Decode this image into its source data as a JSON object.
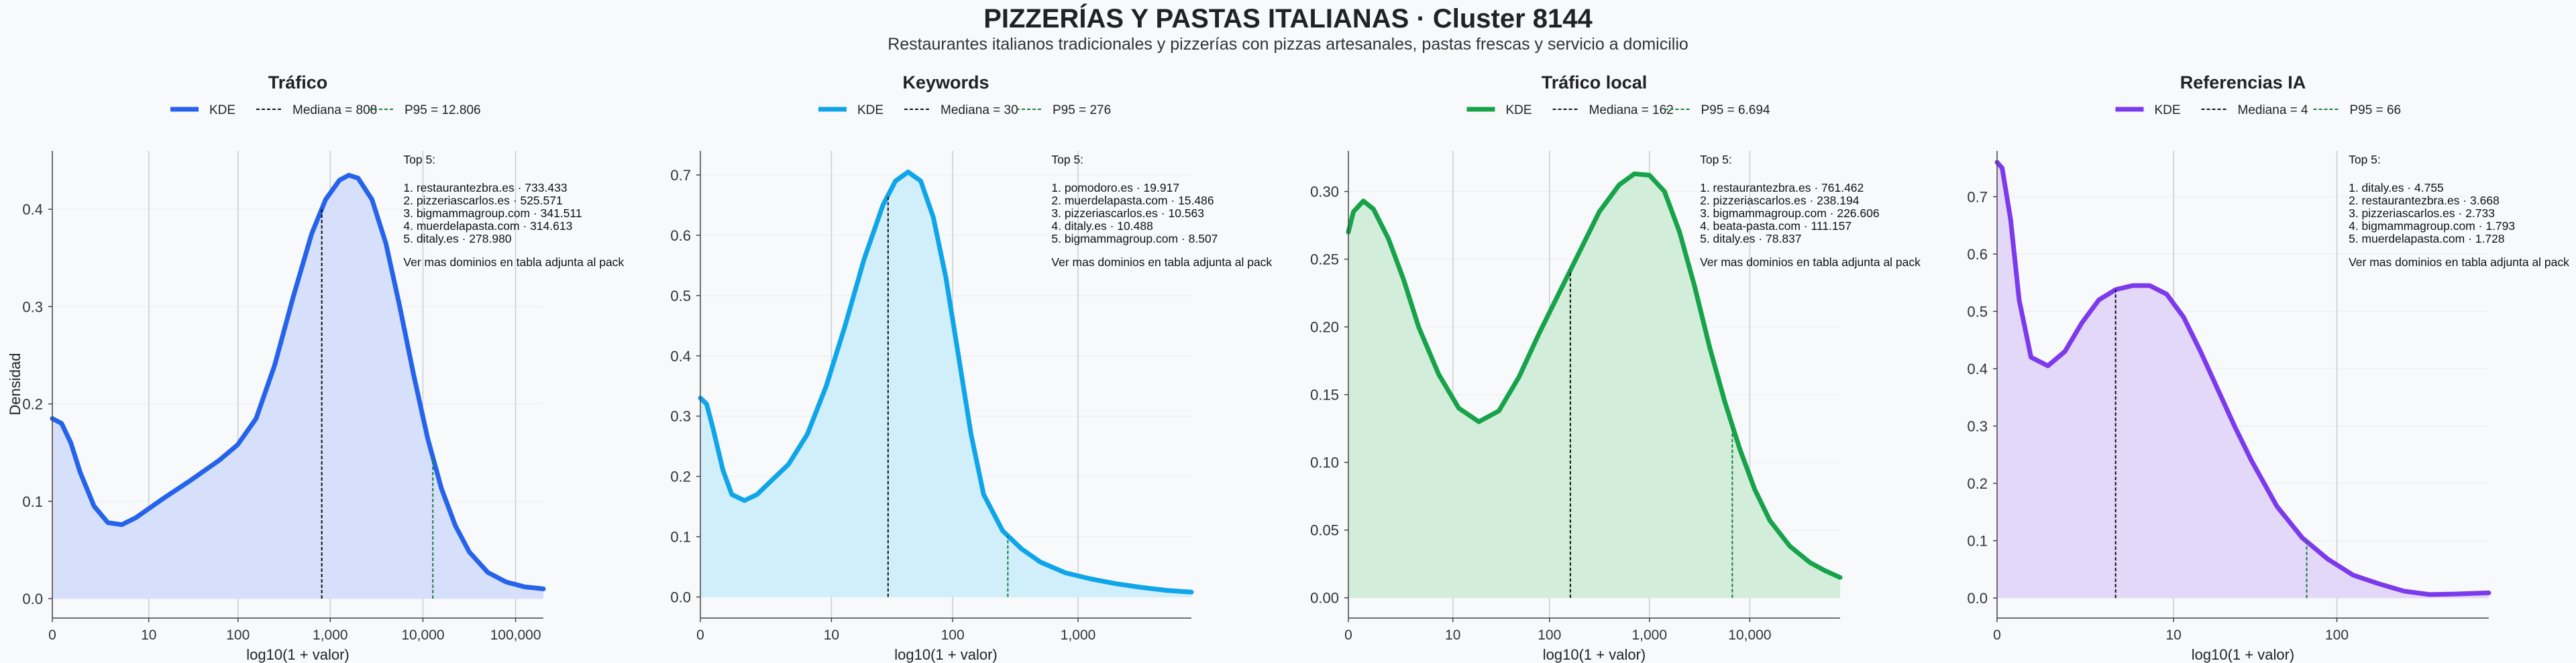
{
  "title": "PIZZERÍAS Y PASTAS ITALIANAS · Cluster 8144",
  "subtitle": "Restaurantes italianos tradicionales y pizzerías con pizzas artesanales, pastas frescas y servicio a domicilio",
  "y_label": "Densidad",
  "x_label": "log10(1 + valor)",
  "top_header": "Top 5:",
  "more_note": "Ver mas dominios en tabla adjunta al pack",
  "chart_data": [
    {
      "type": "area",
      "title": "Tráfico",
      "color": "#2563eb",
      "fill": "#d6e0fa",
      "xmax": 5.3,
      "ylim": [
        -0.02,
        0.46
      ],
      "yticks": [
        0.0,
        0.1,
        0.2,
        0.3,
        0.4
      ],
      "ytick_labels": [
        "0.0",
        "0.1",
        "0.2",
        "0.3",
        "0.4"
      ],
      "xticks": [
        0,
        1.041,
        2.004,
        3.0,
        4.0,
        5.0
      ],
      "xtick_labels": [
        "0",
        "10",
        "100",
        "1,000",
        "10,000",
        "100,000"
      ],
      "legend": [
        "KDE",
        "Mediana = 808",
        "P95 = 12.806"
      ],
      "median_x": 2.908,
      "p95_x": 4.107,
      "x": [
        0,
        0.1,
        0.2,
        0.3,
        0.45,
        0.6,
        0.75,
        0.9,
        1.05,
        1.2,
        1.5,
        1.8,
        2.0,
        2.2,
        2.4,
        2.6,
        2.8,
        2.95,
        3.1,
        3.2,
        3.3,
        3.45,
        3.6,
        3.75,
        3.9,
        4.05,
        4.2,
        4.35,
        4.5,
        4.7,
        4.9,
        5.1,
        5.3
      ],
      "y": [
        0.185,
        0.18,
        0.16,
        0.13,
        0.095,
        0.078,
        0.076,
        0.083,
        0.093,
        0.103,
        0.122,
        0.142,
        0.158,
        0.185,
        0.24,
        0.31,
        0.375,
        0.41,
        0.43,
        0.435,
        0.432,
        0.41,
        0.365,
        0.3,
        0.23,
        0.165,
        0.113,
        0.075,
        0.048,
        0.027,
        0.017,
        0.012,
        0.01
      ],
      "top": [
        "1. restaurantezbra.es · 733.433",
        "2. pizzeriascarlos.es · 525.571",
        "3. bigmammagroup.com · 341.511",
        "4. muerdelapasta.com · 314.613",
        "5. ditaly.es · 278.980"
      ]
    },
    {
      "type": "area",
      "title": "Keywords",
      "color": "#0ea5e9",
      "fill": "#d1eefb",
      "xmax": 3.9,
      "ylim": [
        -0.035,
        0.74
      ],
      "yticks": [
        0.0,
        0.1,
        0.2,
        0.3,
        0.4,
        0.5,
        0.6,
        0.7
      ],
      "ytick_labels": [
        "0.0",
        "0.1",
        "0.2",
        "0.3",
        "0.4",
        "0.5",
        "0.6",
        "0.7"
      ],
      "xticks": [
        0,
        1.041,
        2.004,
        3.0
      ],
      "xtick_labels": [
        "0",
        "10",
        "100",
        "1,000"
      ],
      "legend": [
        "KDE",
        "Mediana = 30",
        "P95 = 276"
      ],
      "median_x": 1.491,
      "p95_x": 2.442,
      "x": [
        0,
        0.05,
        0.1,
        0.18,
        0.25,
        0.35,
        0.45,
        0.55,
        0.7,
        0.85,
        1.0,
        1.15,
        1.3,
        1.45,
        1.55,
        1.65,
        1.75,
        1.85,
        1.95,
        2.05,
        2.15,
        2.25,
        2.4,
        2.55,
        2.7,
        2.9,
        3.1,
        3.3,
        3.5,
        3.7,
        3.9
      ],
      "y": [
        0.33,
        0.32,
        0.28,
        0.21,
        0.17,
        0.16,
        0.17,
        0.19,
        0.22,
        0.27,
        0.35,
        0.45,
        0.56,
        0.65,
        0.69,
        0.705,
        0.69,
        0.63,
        0.53,
        0.4,
        0.27,
        0.17,
        0.11,
        0.08,
        0.058,
        0.04,
        0.03,
        0.022,
        0.016,
        0.011,
        0.008
      ],
      "top": [
        "1. pomodoro.es · 19.917",
        "2. muerdelapasta.com · 15.486",
        "3. pizzeriascarlos.es · 10.563",
        "4. ditaly.es · 10.488",
        "5. bigmammagroup.com · 8.507"
      ]
    },
    {
      "type": "area",
      "title": "Tráfico local",
      "color": "#16a34a",
      "fill": "#d2eedb",
      "xmax": 4.9,
      "ylim": [
        -0.015,
        0.33
      ],
      "yticks": [
        0.0,
        0.05,
        0.1,
        0.15,
        0.2,
        0.25,
        0.3
      ],
      "ytick_labels": [
        "0.00",
        "0.05",
        "0.10",
        "0.15",
        "0.20",
        "0.25",
        "0.30"
      ],
      "xticks": [
        0,
        1.041,
        2.004,
        3.0,
        4.0
      ],
      "xtick_labels": [
        "0",
        "10",
        "100",
        "1,000",
        "10,000"
      ],
      "legend": [
        "KDE",
        "Mediana = 162",
        "P95 = 6.694"
      ],
      "median_x": 2.212,
      "p95_x": 3.826,
      "x": [
        0,
        0.05,
        0.15,
        0.25,
        0.4,
        0.55,
        0.7,
        0.9,
        1.1,
        1.3,
        1.5,
        1.7,
        1.9,
        2.1,
        2.3,
        2.5,
        2.7,
        2.85,
        3.0,
        3.15,
        3.3,
        3.45,
        3.6,
        3.75,
        3.9,
        4.05,
        4.2,
        4.4,
        4.6,
        4.75,
        4.9
      ],
      "y": [
        0.27,
        0.285,
        0.293,
        0.287,
        0.265,
        0.235,
        0.2,
        0.165,
        0.14,
        0.13,
        0.138,
        0.163,
        0.195,
        0.225,
        0.255,
        0.285,
        0.305,
        0.313,
        0.312,
        0.3,
        0.27,
        0.23,
        0.185,
        0.145,
        0.11,
        0.08,
        0.057,
        0.038,
        0.026,
        0.02,
        0.015
      ],
      "top": [
        "1. restaurantezbra.es · 761.462",
        "2. pizzeriascarlos.es · 238.194",
        "3. bigmammagroup.com · 226.606",
        "4. beata-pasta.com · 111.157",
        "5. ditaly.es · 78.837"
      ]
    },
    {
      "type": "area",
      "title": "Referencias IA",
      "color": "#7c3aed",
      "fill": "#e4d8f9",
      "xmax": 2.9,
      "ylim": [
        -0.035,
        0.78
      ],
      "yticks": [
        0.0,
        0.1,
        0.2,
        0.3,
        0.4,
        0.5,
        0.6,
        0.7
      ],
      "ytick_labels": [
        "0.0",
        "0.1",
        "0.2",
        "0.3",
        "0.4",
        "0.5",
        "0.6",
        "0.7"
      ],
      "xticks": [
        0,
        1.041,
        2.004
      ],
      "xtick_labels": [
        "0",
        "10",
        "100"
      ],
      "legend": [
        "KDE",
        "Mediana = 4",
        "P95 = 66"
      ],
      "median_x": 0.699,
      "p95_x": 1.826,
      "x": [
        0,
        0.03,
        0.08,
        0.13,
        0.2,
        0.3,
        0.4,
        0.5,
        0.6,
        0.7,
        0.8,
        0.9,
        1.0,
        1.1,
        1.2,
        1.3,
        1.4,
        1.5,
        1.65,
        1.8,
        1.95,
        2.1,
        2.25,
        2.4,
        2.55,
        2.7,
        2.9
      ],
      "y": [
        0.76,
        0.75,
        0.66,
        0.52,
        0.42,
        0.405,
        0.43,
        0.48,
        0.52,
        0.538,
        0.545,
        0.545,
        0.53,
        0.49,
        0.43,
        0.365,
        0.3,
        0.24,
        0.16,
        0.105,
        0.068,
        0.04,
        0.025,
        0.012,
        0.006,
        0.007,
        0.009
      ],
      "top": [
        "1. ditaly.es · 4.755",
        "2. restaurantezbra.es · 3.668",
        "3. pizzeriascarlos.es · 2.733",
        "4. bigmammagroup.com · 1.793",
        "5. muerdelapasta.com · 1.728"
      ]
    }
  ]
}
